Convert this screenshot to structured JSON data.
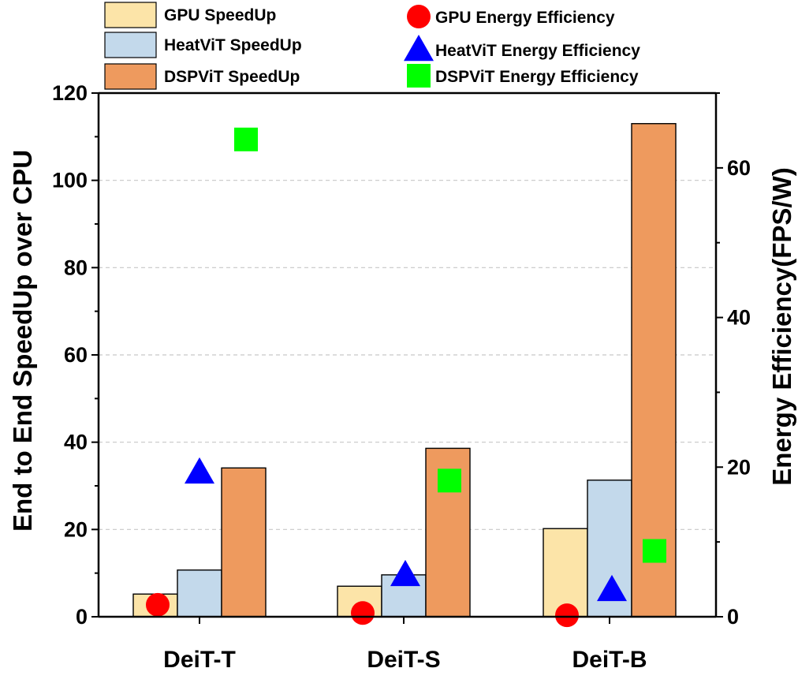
{
  "chart_data": {
    "type": "bar",
    "categories": [
      "DeiT-T",
      "DeiT-S",
      "DeiT-B"
    ],
    "series": [
      {
        "name": "GPU SpeedUp",
        "axis": "left",
        "kind": "bar",
        "color": "#FCE4A8",
        "values": [
          5.2,
          7.0,
          20.2
        ]
      },
      {
        "name": "HeatViT SpeedUp",
        "axis": "left",
        "kind": "bar",
        "color": "#C3D9EB",
        "values": [
          10.7,
          9.6,
          31.3
        ]
      },
      {
        "name": "DSPViT SpeedUp",
        "axis": "left",
        "kind": "bar",
        "color": "#EE9A5E",
        "values": [
          34.1,
          38.6,
          113.0
        ]
      },
      {
        "name": "GPU Energy Efficiency",
        "axis": "right",
        "kind": "marker",
        "marker": "circle",
        "color": "#FF0000",
        "values": [
          1.6,
          0.5,
          0.2
        ]
      },
      {
        "name": "HeatViT Energy Efficiency",
        "axis": "right",
        "kind": "marker",
        "marker": "triangle",
        "color": "#0000FF",
        "values": [
          19.3,
          5.6,
          3.6
        ]
      },
      {
        "name": "DSPViT Energy Efficiency",
        "axis": "right",
        "kind": "marker",
        "marker": "square",
        "color": "#00FF00",
        "values": [
          63.8,
          18.2,
          8.8
        ]
      }
    ],
    "ylabel": "End to End SpeedUp over CPU",
    "y2label": "Energy Efficiency(FPS/W)",
    "ylim": [
      0,
      120
    ],
    "y2lim": [
      0,
      70
    ],
    "yticks": [
      "0",
      "20",
      "40",
      "60",
      "80",
      "100",
      "120"
    ],
    "y2ticks": [
      "0",
      "20",
      "40",
      "60"
    ],
    "grid": "horizontal-dashed",
    "legend_position": "top"
  }
}
